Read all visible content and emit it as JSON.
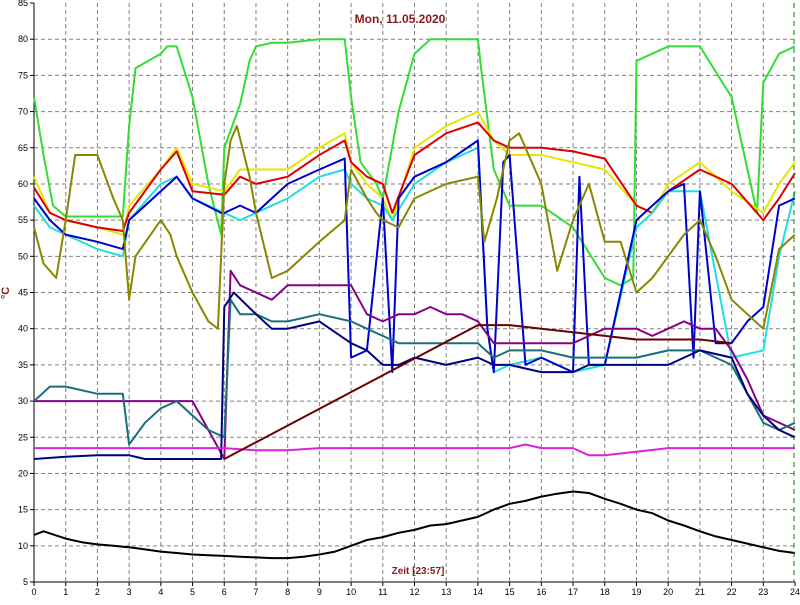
{
  "chart_data": {
    "type": "line",
    "title": "Mon, 11.05.2020",
    "xlabel": "Zeit [23:57]",
    "ylabel": "°C",
    "xlim": [
      0,
      24
    ],
    "ylim": [
      5,
      85
    ],
    "x_ticks": [
      "0",
      "1",
      "2",
      "3",
      "4",
      "5",
      "6",
      "7",
      "8",
      "9",
      "10",
      "11",
      "12",
      "13",
      "14",
      "15",
      "16",
      "17",
      "18",
      "19",
      "20",
      "21",
      "22",
      "23",
      "24"
    ],
    "y_ticks": [
      "5",
      "10",
      "15",
      "20",
      "25",
      "30",
      "35",
      "40",
      "45",
      "50",
      "55",
      "60",
      "65",
      "70",
      "75",
      "80",
      "85"
    ],
    "grid": true,
    "series": [
      {
        "color": "#33dd33",
        "x": [
          0,
          0.3,
          0.6,
          1,
          2,
          2.8,
          3,
          3.2,
          4,
          4.2,
          4.5,
          5,
          5.5,
          5.9,
          6,
          6.5,
          6.8,
          7,
          7.5,
          8,
          9,
          9.8,
          10,
          10.3,
          10.8,
          11,
          11.5,
          12,
          12.5,
          13,
          14,
          14.1,
          14.5,
          15,
          16,
          17,
          18,
          18.5,
          18.9,
          19,
          19.5,
          20,
          21,
          22,
          22.8,
          23,
          23.5,
          24
        ],
        "y": [
          72,
          64,
          57,
          55.5,
          55.5,
          55.5,
          68,
          76,
          78,
          79,
          79,
          72,
          60,
          53,
          65,
          71,
          77,
          79,
          79.5,
          79.5,
          80,
          80,
          72,
          63,
          60,
          58,
          70,
          78,
          80,
          80,
          80,
          76,
          62,
          57,
          57,
          54,
          47,
          46,
          47,
          77,
          78,
          79,
          79,
          72,
          56,
          74,
          78,
          79
        ]
      },
      {
        "color": "#e6e600",
        "x": [
          0,
          0.5,
          1,
          2,
          2.8,
          3,
          4,
          4.5,
          5,
          6,
          6.5,
          7,
          8,
          9,
          9.8,
          10,
          10.5,
          11,
          11.3,
          12,
          13,
          14,
          14.5,
          15,
          16,
          17,
          18,
          19,
          19.5,
          20,
          21,
          22,
          23,
          23.5,
          24
        ],
        "y": [
          61,
          56,
          55,
          54,
          53,
          57,
          62,
          65,
          60,
          59,
          62,
          62,
          62,
          65,
          67,
          63,
          60,
          58,
          55,
          65,
          68,
          70,
          66,
          64,
          64,
          63,
          62,
          57,
          56,
          60,
          63,
          59,
          56,
          60,
          63
        ]
      },
      {
        "color": "#dd0000",
        "x": [
          0,
          0.5,
          1,
          2,
          2.8,
          3,
          4,
          4.5,
          5,
          6,
          6.5,
          7,
          8,
          9,
          9.8,
          10,
          10.5,
          11,
          11.3,
          12,
          13,
          14,
          14.5,
          15,
          16,
          17,
          18,
          19,
          19.5,
          20,
          21,
          22,
          23,
          23.5,
          24
        ],
        "y": [
          59.5,
          56,
          55,
          54,
          53.5,
          56,
          62,
          64.5,
          59,
          58.5,
          61,
          60,
          61,
          64,
          66,
          63,
          61,
          60,
          56,
          64,
          67,
          68.5,
          66,
          65,
          65,
          64.5,
          63.5,
          57,
          56,
          59,
          62,
          60,
          55,
          58,
          61.5
        ]
      },
      {
        "color": "#22dddd",
        "x": [
          0,
          0.5,
          1,
          2,
          2.8,
          3,
          4,
          4.5,
          5,
          6,
          6.5,
          7,
          8,
          9,
          9.8,
          10,
          10.5,
          11,
          11.3,
          12,
          13,
          14,
          14.3,
          14.5,
          15,
          16,
          17,
          18,
          19,
          19.5,
          20,
          21,
          22,
          23,
          23.5,
          24
        ],
        "y": [
          57,
          54,
          53,
          51,
          50,
          55,
          60,
          61,
          58,
          56,
          55,
          56,
          58,
          61,
          62,
          60,
          58,
          57,
          55,
          60,
          63,
          65,
          40,
          34,
          35,
          36,
          34,
          35,
          54,
          56,
          59,
          59,
          36,
          37,
          50,
          59
        ]
      },
      {
        "color": "#0000cc",
        "x": [
          0,
          0.5,
          1,
          2,
          2.8,
          3,
          4,
          4.5,
          5,
          5.9,
          6,
          6.5,
          7,
          7.5,
          8,
          9,
          9.8,
          10,
          10.5,
          11,
          11.3,
          11.5,
          12,
          13,
          14,
          14.3,
          14.5,
          14.8,
          15,
          15.5,
          16,
          17,
          17.2,
          17.5,
          18,
          19,
          19.5,
          20,
          20.5,
          20.8,
          21,
          21.5,
          22,
          22.5,
          23,
          23.5,
          24
        ],
        "y": [
          58,
          55,
          53,
          52,
          51,
          55,
          59,
          61,
          58,
          56,
          56,
          57,
          56,
          58,
          60,
          62,
          63.5,
          36,
          37,
          58,
          34,
          58,
          61,
          63,
          66,
          40,
          34,
          63,
          64,
          35,
          36,
          34,
          61,
          35,
          35,
          55,
          57,
          59,
          60,
          36,
          59,
          38,
          38,
          41,
          43,
          57,
          58
        ]
      },
      {
        "color": "#888800",
        "x": [
          0,
          0.3,
          0.7,
          1,
          1.3,
          2,
          2.5,
          2.8,
          3,
          3.2,
          4,
          4.3,
          4.5,
          5,
          5.5,
          5.8,
          6,
          6.2,
          6.4,
          6.8,
          7,
          7.5,
          8,
          9,
          9.8,
          10,
          10.5,
          10.8,
          11,
          11.5,
          12,
          13,
          14,
          14.2,
          14.6,
          15,
          15.3,
          15.5,
          16,
          16.5,
          17,
          17.5,
          18,
          18.5,
          19,
          19.5,
          20,
          20.5,
          21,
          21.5,
          22,
          22.5,
          23,
          23.5,
          24
        ],
        "y": [
          54,
          49,
          47,
          55,
          64,
          64,
          58,
          55,
          44,
          50,
          55,
          53,
          50,
          45,
          41,
          40,
          60,
          66,
          68,
          61,
          56,
          47,
          48,
          52,
          55,
          62,
          58,
          56,
          55,
          54,
          58,
          60,
          61,
          52,
          58,
          66,
          67,
          65,
          60,
          48,
          55,
          60,
          52,
          52,
          45,
          47,
          50,
          53,
          55,
          50,
          44,
          42,
          40,
          51,
          53
        ]
      },
      {
        "color": "#880088",
        "x": [
          0,
          1,
          2,
          3,
          3.2,
          4,
          5,
          6,
          6.2,
          6.5,
          7,
          7.5,
          8,
          8.5,
          9,
          10,
          10.5,
          11,
          11.5,
          12,
          12.5,
          13,
          13.5,
          14,
          14.5,
          15,
          16,
          17,
          17.5,
          18,
          19,
          19.5,
          20,
          20.5,
          21,
          21.5,
          22,
          22.5,
          23,
          24
        ],
        "y": [
          30,
          30,
          30,
          30,
          30,
          30,
          30,
          22,
          48,
          46,
          45,
          44,
          46,
          46,
          46,
          46,
          42,
          41,
          42,
          42,
          43,
          42,
          42,
          41,
          38,
          38,
          38,
          38,
          39,
          40,
          40,
          39,
          40,
          41,
          40,
          40,
          37,
          33,
          28,
          26
        ]
      },
      {
        "color": "#1a6e7e",
        "x": [
          0,
          0.5,
          1,
          2,
          2.8,
          3,
          3.5,
          4,
          4.5,
          5,
          5.5,
          6,
          6.2,
          6.5,
          7,
          7.5,
          8,
          9,
          10,
          10.5,
          11,
          11.5,
          12,
          13,
          14,
          14.5,
          15,
          16,
          17,
          18,
          19,
          20,
          21,
          22,
          22.5,
          23,
          23.5,
          24
        ],
        "y": [
          30,
          32,
          32,
          31,
          31,
          24,
          27,
          29,
          30,
          28,
          26,
          25,
          44,
          42,
          42,
          41,
          41,
          42,
          41,
          40,
          39,
          38,
          38,
          38,
          38,
          36,
          37,
          37,
          36,
          36,
          36,
          37,
          37,
          35,
          31,
          27,
          26,
          27
        ]
      },
      {
        "color": "#000080",
        "x": [
          0,
          1,
          2,
          3,
          3.5,
          4,
          5,
          5.9,
          6,
          6.3,
          7,
          7.5,
          8,
          9,
          10,
          10.5,
          11,
          11.5,
          12,
          13,
          14,
          14.5,
          15,
          16,
          17,
          17.5,
          18,
          19,
          20,
          21,
          22,
          22.5,
          23,
          23.5,
          24
        ],
        "y": [
          22,
          22.3,
          22.5,
          22.5,
          22,
          22,
          22,
          22,
          43,
          45,
          42,
          40,
          40,
          41,
          38,
          37,
          35,
          35,
          36,
          35,
          36,
          35,
          35,
          34,
          34,
          35,
          35,
          35,
          35,
          37,
          36,
          31,
          28,
          26,
          25
        ]
      },
      {
        "color": "#dd22dd",
        "x": [
          0,
          6,
          7,
          8,
          9,
          10,
          11,
          12,
          13,
          14,
          15,
          15.5,
          16,
          17,
          17.5,
          18,
          19,
          20,
          21,
          22,
          23,
          24
        ],
        "y": [
          23.5,
          23.5,
          23.2,
          23.2,
          23.5,
          23.5,
          23.5,
          23.5,
          23.5,
          23.5,
          23.5,
          24,
          23.5,
          23.5,
          22.5,
          22.5,
          23,
          23.5,
          23.5,
          23.5,
          23.5,
          23.5
        ]
      },
      {
        "color": "#6b0000",
        "x": [
          6,
          14,
          15,
          16,
          17,
          18,
          19,
          20,
          21,
          22
        ],
        "y": [
          22,
          40.5,
          40.5,
          40,
          39.5,
          39,
          38.5,
          38.5,
          38.5,
          38
        ]
      },
      {
        "color": "#000000",
        "x": [
          0,
          0.3,
          1,
          1.5,
          2,
          2.5,
          3,
          3.5,
          4,
          4.5,
          5,
          5.5,
          6,
          6.5,
          7,
          7.5,
          8,
          8.5,
          9,
          9.5,
          10,
          10.5,
          11,
          11.5,
          12,
          12.5,
          13,
          13.5,
          14,
          14.5,
          15,
          15.5,
          16,
          16.5,
          17,
          17.5,
          18,
          18.5,
          19,
          19.5,
          20,
          20.5,
          21,
          21.5,
          22,
          22.5,
          23,
          23.5,
          24
        ],
        "y": [
          11.5,
          12,
          11,
          10.5,
          10.2,
          10,
          9.8,
          9.5,
          9.2,
          9,
          8.8,
          8.7,
          8.6,
          8.5,
          8.4,
          8.3,
          8.3,
          8.5,
          8.8,
          9.2,
          10,
          10.8,
          11.2,
          11.8,
          12.2,
          12.8,
          13,
          13.5,
          14,
          15,
          15.8,
          16.2,
          16.8,
          17.2,
          17.5,
          17.3,
          16.5,
          15.8,
          15,
          14.5,
          13.5,
          12.8,
          12,
          11.3,
          10.8,
          10.3,
          9.8,
          9.3,
          9
        ]
      }
    ]
  }
}
